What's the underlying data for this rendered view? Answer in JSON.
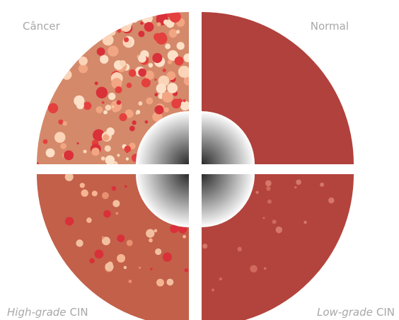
{
  "labels": {
    "cancer": "Câncer",
    "normal": "Normal",
    "high_grade": {
      "italic": "High-grade",
      "plain": "CIN"
    },
    "low_grade": {
      "italic": "Low-grade",
      "plain": "CIN"
    }
  }
}
